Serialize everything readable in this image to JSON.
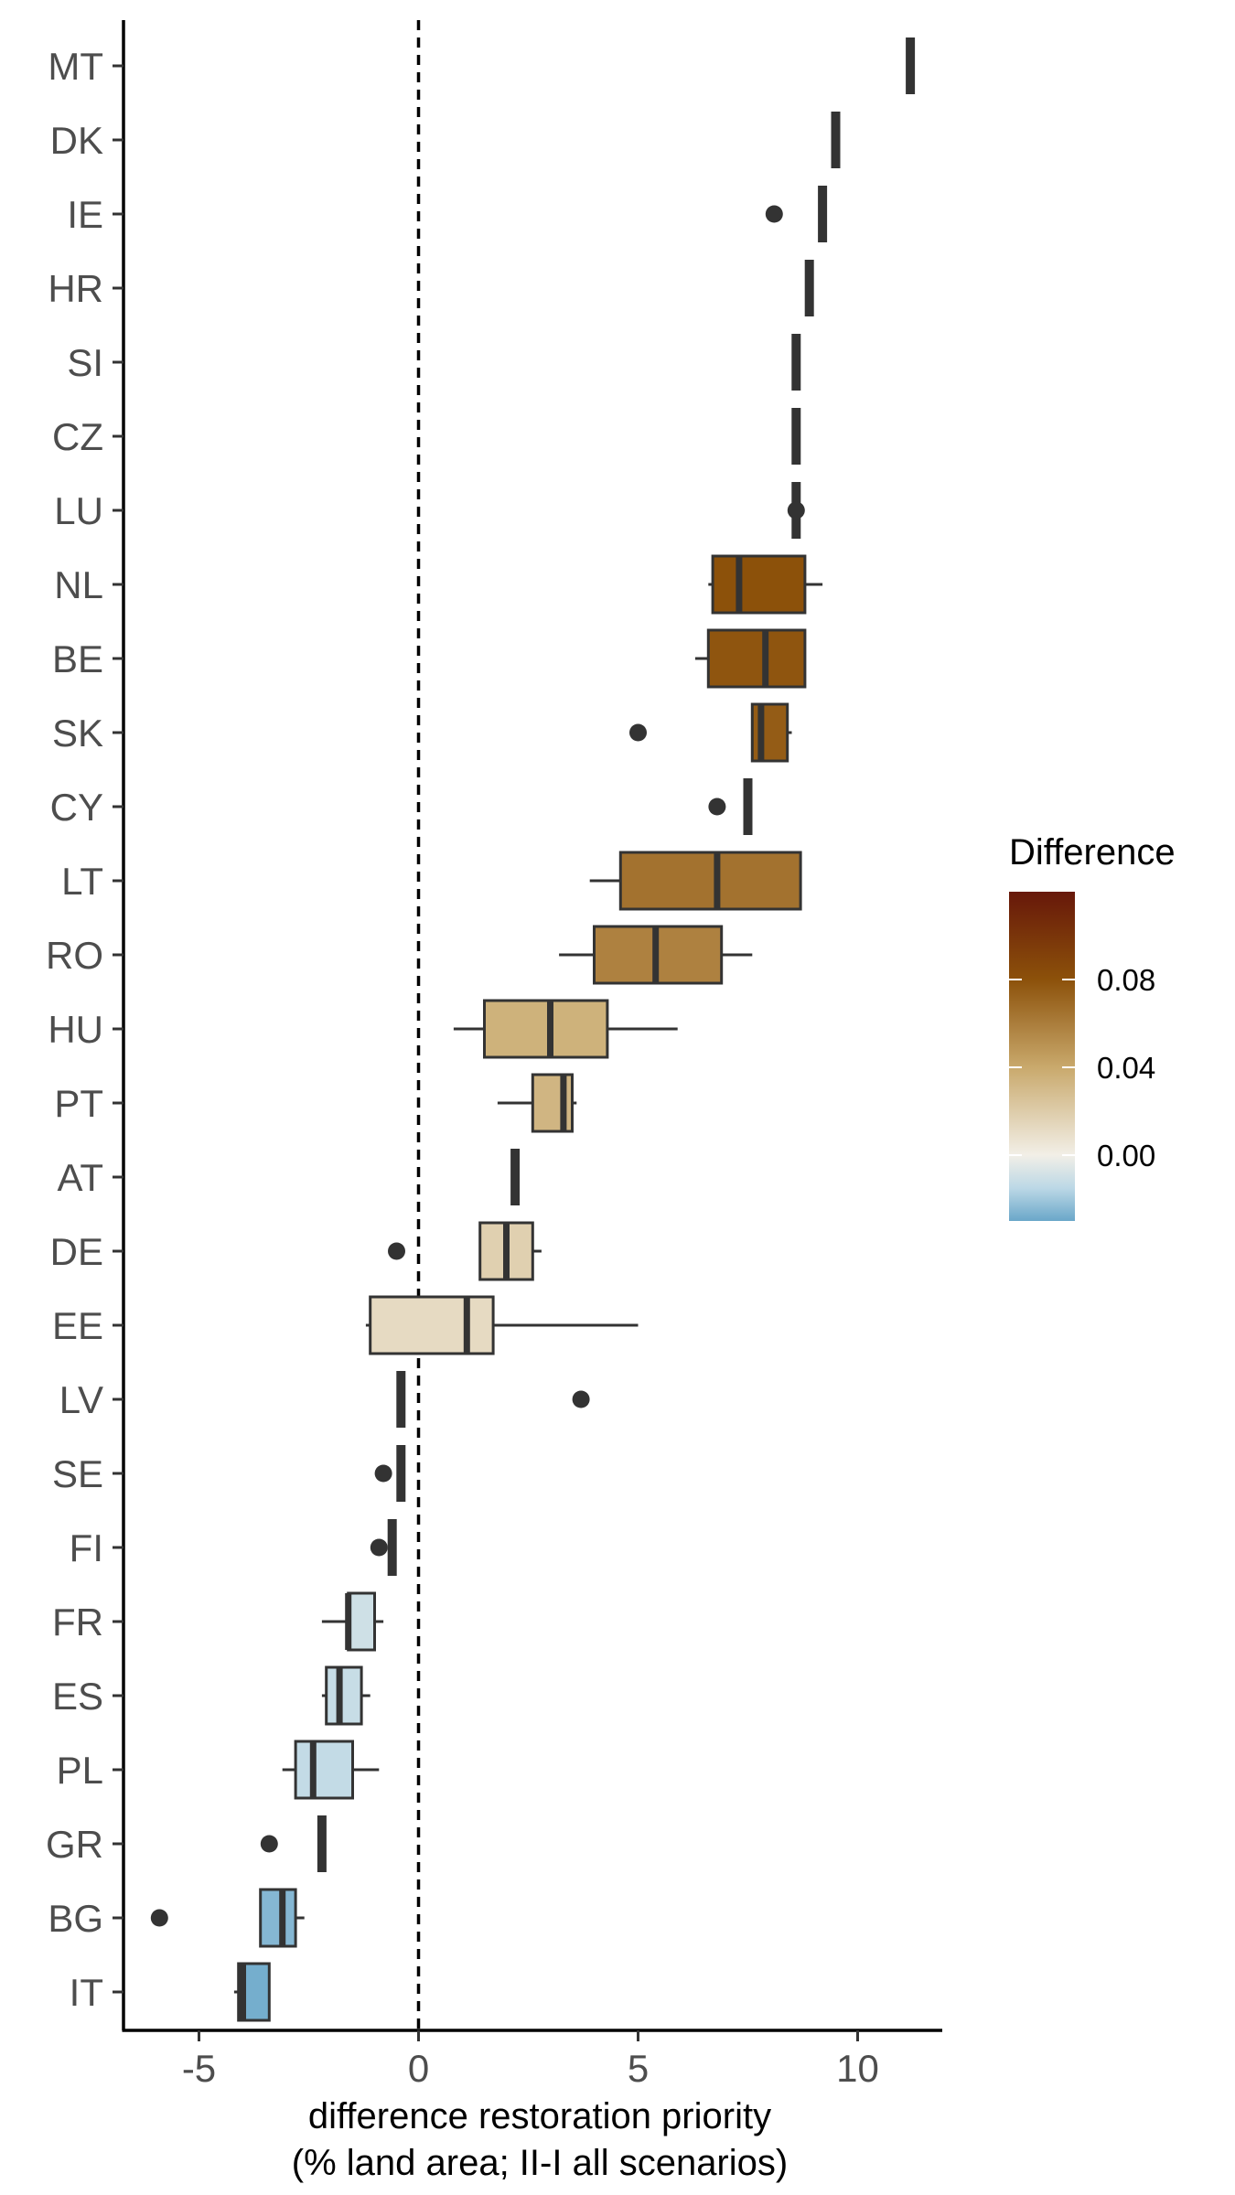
{
  "chart_data": {
    "type": "boxplot",
    "orientation": "horizontal",
    "xlabel_line1": "difference restoration priority",
    "xlabel_line2": "(% land area; II-I all scenarios)",
    "ylabel": "",
    "xlim": [
      -6.8,
      12
    ],
    "x_ticks": [
      -5,
      0,
      5,
      10
    ],
    "x_tick_labels": [
      "-5",
      "0",
      "5",
      "10"
    ],
    "reference_line": {
      "x": 0,
      "style": "dashed"
    },
    "grid": false,
    "legend": {
      "title": "Difference",
      "placement": "right",
      "type": "continuous",
      "ticks": [
        0.08,
        0.04,
        0.0
      ],
      "tick_labels": [
        "0.08",
        "0.04",
        "0.00"
      ],
      "range": [
        -0.03,
        0.12
      ],
      "gradient": [
        {
          "value": 0.12,
          "color": "#67180a"
        },
        {
          "value": 0.08,
          "color": "#8c510a"
        },
        {
          "value": 0.04,
          "color": "#c9a96c"
        },
        {
          "value": 0.0,
          "color": "#f2efe7"
        },
        {
          "value": -0.015,
          "color": "#bcd8e6"
        },
        {
          "value": -0.03,
          "color": "#6aa7c9"
        }
      ]
    },
    "countries": [
      {
        "name": "MT",
        "whisker_low": 11.2,
        "q1": 11.2,
        "median": 11.2,
        "q3": 11.2,
        "whisker_high": 11.2,
        "outliers": [],
        "diff": 0.11
      },
      {
        "name": "DK",
        "whisker_low": 9.5,
        "q1": 9.5,
        "median": 9.5,
        "q3": 9.5,
        "whisker_high": 9.5,
        "outliers": [],
        "diff": 0.1
      },
      {
        "name": "IE",
        "whisker_low": 9.2,
        "q1": 9.2,
        "median": 9.2,
        "q3": 9.2,
        "whisker_high": 9.2,
        "outliers": [
          8.1
        ],
        "diff": 0.095
      },
      {
        "name": "HR",
        "whisker_low": 8.9,
        "q1": 8.9,
        "median": 8.9,
        "q3": 8.9,
        "whisker_high": 8.9,
        "outliers": [],
        "diff": 0.092
      },
      {
        "name": "SI",
        "whisker_low": 8.6,
        "q1": 8.6,
        "median": 8.6,
        "q3": 8.6,
        "whisker_high": 8.6,
        "outliers": [],
        "diff": 0.09
      },
      {
        "name": "CZ",
        "whisker_low": 8.6,
        "q1": 8.6,
        "median": 8.6,
        "q3": 8.6,
        "whisker_high": 8.6,
        "outliers": [],
        "diff": 0.088
      },
      {
        "name": "LU",
        "whisker_low": 8.6,
        "q1": 8.6,
        "median": 8.6,
        "q3": 8.6,
        "whisker_high": 8.6,
        "outliers": [
          8.6
        ],
        "diff": 0.085
      },
      {
        "name": "NL",
        "whisker_low": 6.6,
        "q1": 6.7,
        "median": 7.3,
        "q3": 8.8,
        "whisker_high": 9.2,
        "outliers": [],
        "diff": 0.08
      },
      {
        "name": "BE",
        "whisker_low": 6.3,
        "q1": 6.6,
        "median": 7.9,
        "q3": 8.8,
        "whisker_high": 8.8,
        "outliers": [],
        "diff": 0.078
      },
      {
        "name": "SK",
        "whisker_low": 7.6,
        "q1": 7.6,
        "median": 7.8,
        "q3": 8.4,
        "whisker_high": 8.5,
        "outliers": [
          5.0
        ],
        "diff": 0.075
      },
      {
        "name": "CY",
        "whisker_low": 7.5,
        "q1": 7.5,
        "median": 7.5,
        "q3": 7.5,
        "whisker_high": 7.5,
        "outliers": [
          6.8
        ],
        "diff": 0.072
      },
      {
        "name": "LT",
        "whisker_low": 3.9,
        "q1": 4.6,
        "median": 6.8,
        "q3": 8.7,
        "whisker_high": 8.7,
        "outliers": [],
        "diff": 0.065
      },
      {
        "name": "RO",
        "whisker_low": 3.2,
        "q1": 4.0,
        "median": 5.4,
        "q3": 6.9,
        "whisker_high": 7.6,
        "outliers": [],
        "diff": 0.058
      },
      {
        "name": "HU",
        "whisker_low": 0.8,
        "q1": 1.5,
        "median": 3.0,
        "q3": 4.3,
        "whisker_high": 5.9,
        "outliers": [],
        "diff": 0.035
      },
      {
        "name": "PT",
        "whisker_low": 1.8,
        "q1": 2.6,
        "median": 3.3,
        "q3": 3.5,
        "whisker_high": 3.6,
        "outliers": [],
        "diff": 0.033
      },
      {
        "name": "AT",
        "whisker_low": 2.2,
        "q1": 2.2,
        "median": 2.2,
        "q3": 2.2,
        "whisker_high": 2.3,
        "outliers": [],
        "diff": 0.02
      },
      {
        "name": "DE",
        "whisker_low": 1.4,
        "q1": 1.4,
        "median": 2.0,
        "q3": 2.6,
        "whisker_high": 2.8,
        "outliers": [
          -0.5
        ],
        "diff": 0.018
      },
      {
        "name": "EE",
        "whisker_low": -1.2,
        "q1": -1.1,
        "median": 1.1,
        "q3": 1.7,
        "whisker_high": 5.0,
        "outliers": [],
        "diff": 0.012
      },
      {
        "name": "LV",
        "whisker_low": -0.4,
        "q1": -0.4,
        "median": -0.4,
        "q3": -0.4,
        "whisker_high": -0.4,
        "outliers": [
          3.7
        ],
        "diff": 0.0
      },
      {
        "name": "SE",
        "whisker_low": -0.4,
        "q1": -0.4,
        "median": -0.4,
        "q3": -0.4,
        "whisker_high": -0.4,
        "outliers": [
          -0.8
        ],
        "diff": 0.0
      },
      {
        "name": "FI",
        "whisker_low": -0.6,
        "q1": -0.6,
        "median": -0.6,
        "q3": -0.6,
        "whisker_high": -0.6,
        "outliers": [
          -0.9
        ],
        "diff": 0.0
      },
      {
        "name": "FR",
        "whisker_low": -2.2,
        "q1": -1.6,
        "median": -1.6,
        "q3": -1.0,
        "whisker_high": -0.8,
        "outliers": [],
        "diff": -0.01
      },
      {
        "name": "ES",
        "whisker_low": -2.2,
        "q1": -2.1,
        "median": -1.8,
        "q3": -1.3,
        "whisker_high": -1.1,
        "outliers": [],
        "diff": -0.012
      },
      {
        "name": "PL",
        "whisker_low": -3.1,
        "q1": -2.8,
        "median": -2.4,
        "q3": -1.5,
        "whisker_high": -0.9,
        "outliers": [],
        "diff": -0.013
      },
      {
        "name": "GR",
        "whisker_low": -2.2,
        "q1": -2.2,
        "median": -2.2,
        "q3": -2.2,
        "whisker_high": -2.2,
        "outliers": [
          -3.4
        ],
        "diff": -0.015
      },
      {
        "name": "BG",
        "whisker_low": -3.6,
        "q1": -3.6,
        "median": -3.1,
        "q3": -2.8,
        "whisker_high": -2.6,
        "outliers": [
          -5.9
        ],
        "diff": -0.025
      },
      {
        "name": "IT",
        "whisker_low": -4.2,
        "q1": -4.1,
        "median": -4.0,
        "q3": -3.4,
        "whisker_high": -3.4,
        "outliers": [],
        "diff": -0.028
      }
    ]
  }
}
